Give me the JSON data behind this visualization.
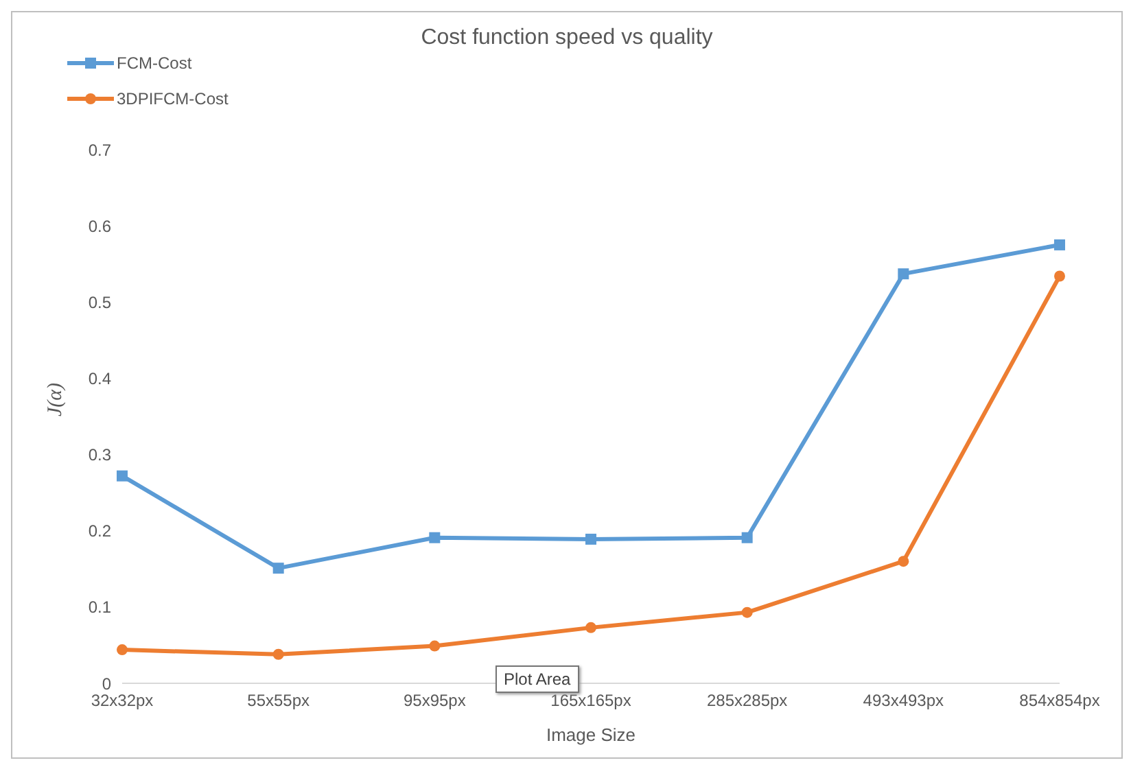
{
  "chart_data": {
    "type": "line",
    "title": "Cost function speed vs quality",
    "xlabel": "Image Size",
    "ylabel": "J(α)",
    "categories": [
      "32x32px",
      "55x55px",
      "95x95px",
      "165x165px",
      "285x285px",
      "493x493px",
      "854x854px"
    ],
    "series": [
      {
        "name": "FCM-Cost",
        "color": "#5b9bd5",
        "marker": "square",
        "values": [
          0.272,
          0.151,
          0.191,
          0.189,
          0.191,
          0.537,
          0.575
        ]
      },
      {
        "name": "3DPIFCM-Cost",
        "color": "#ed7d31",
        "marker": "circle",
        "values": [
          0.044,
          0.038,
          0.049,
          0.073,
          0.093,
          0.16,
          0.534
        ]
      }
    ],
    "ylim": [
      0,
      0.7
    ],
    "yticks": [
      0,
      0.1,
      0.2,
      0.3,
      0.4,
      0.5,
      0.6,
      0.7
    ],
    "grid": false,
    "legend": "top left",
    "annotations": [
      "Plot Area"
    ]
  }
}
